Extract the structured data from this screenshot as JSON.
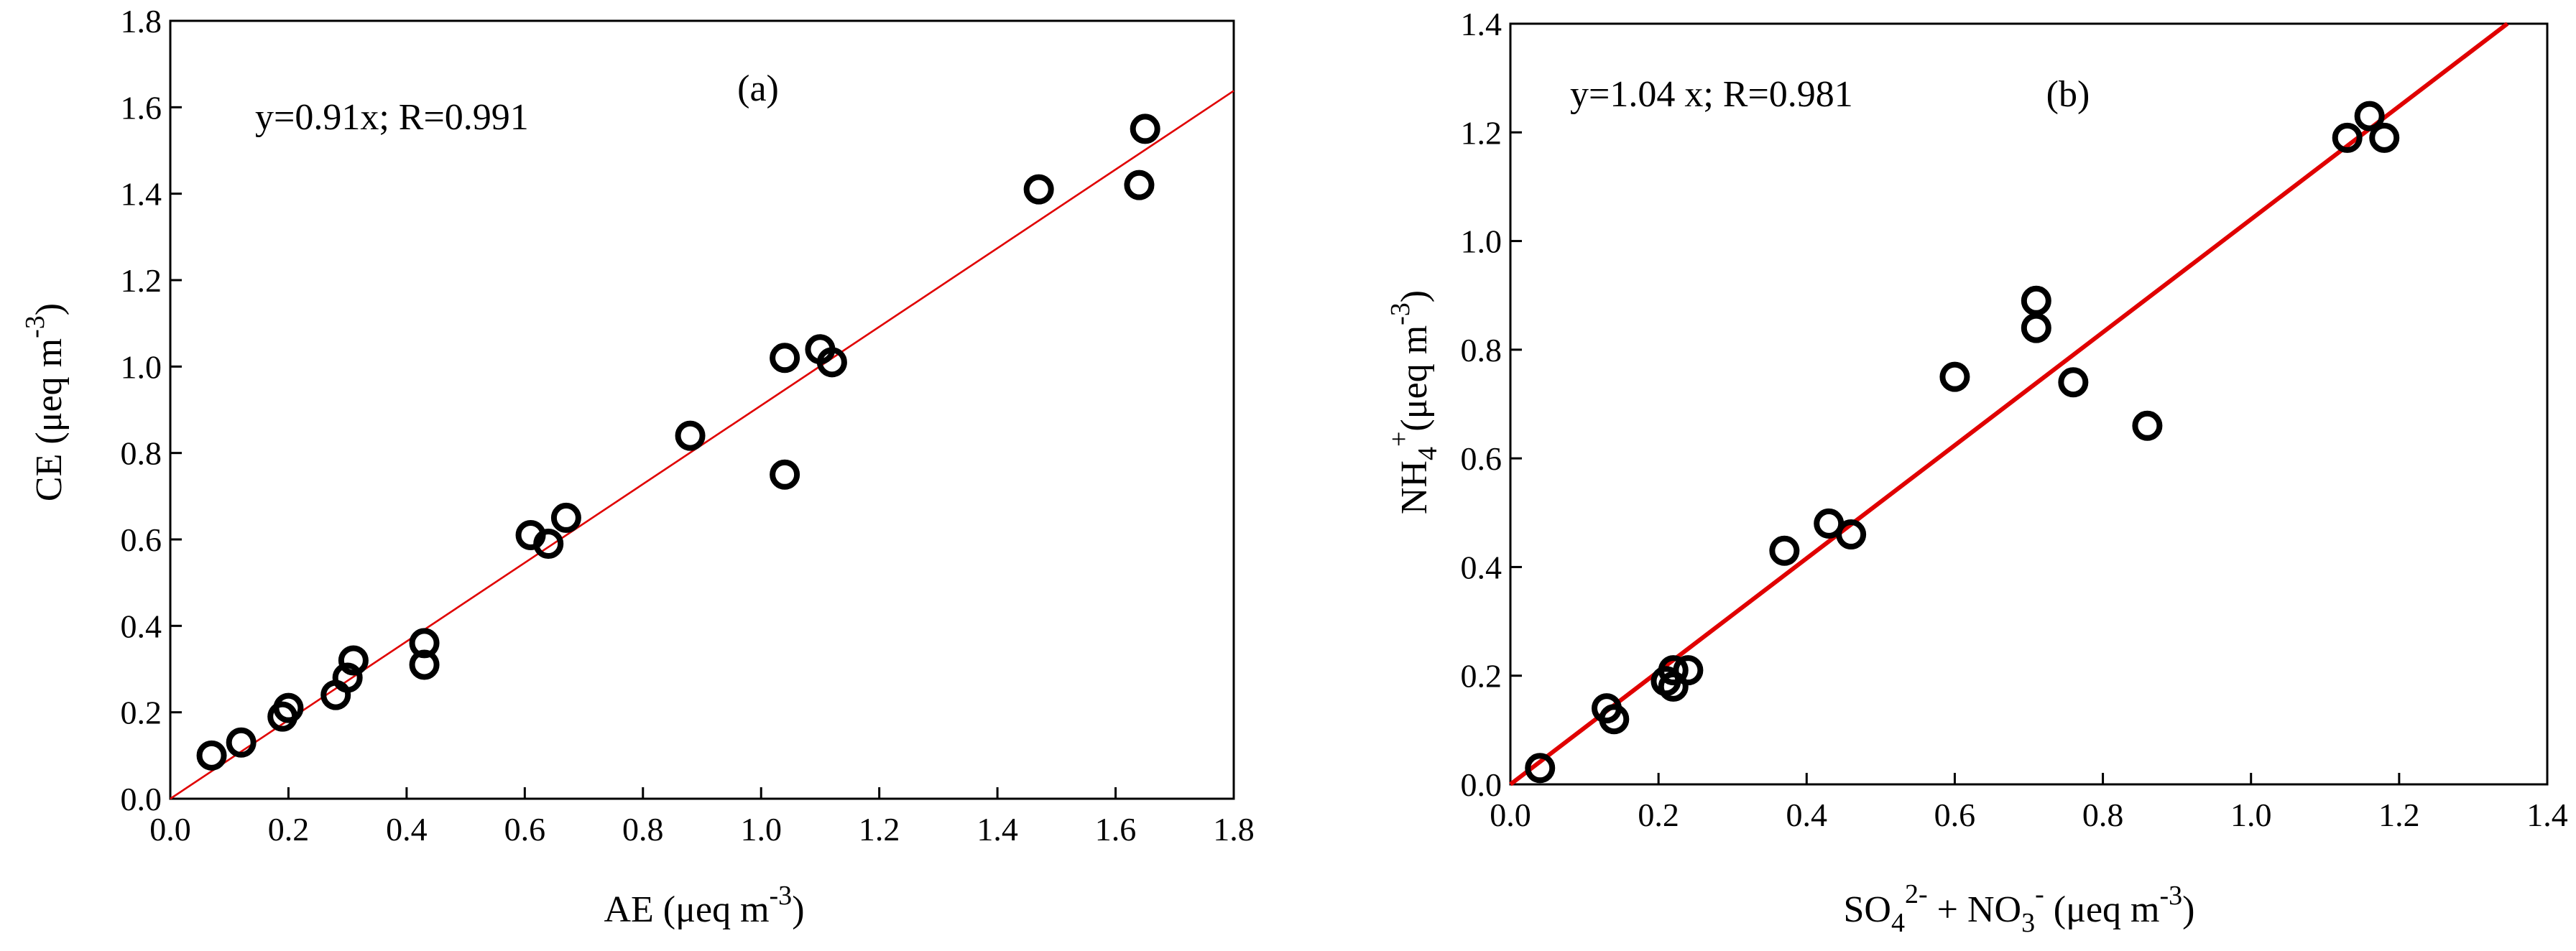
{
  "chart_data": [
    {
      "type": "scatter",
      "panel_label": "(a)",
      "equation": "y=0.91x;  R=0.991",
      "xlabel": {
        "prefix": "AE (μeq m",
        "sup": "-3",
        "suffix": ")"
      },
      "ylabel": {
        "prefix": "CE (μeq m",
        "sup": "-3",
        "suffix": ")"
      },
      "xlim": [
        0,
        1.8
      ],
      "ylim": [
        0,
        1.8
      ],
      "xticks": [
        "0.0",
        "0.2",
        "0.4",
        "0.6",
        "0.8",
        "1.0",
        "1.2",
        "1.4",
        "1.6",
        "1.8"
      ],
      "yticks": [
        "0.0",
        "0.2",
        "0.4",
        "0.6",
        "0.8",
        "1.0",
        "1.2",
        "1.4",
        "1.6",
        "1.8"
      ],
      "fit": {
        "slope": 0.91,
        "color": "#e00000"
      },
      "marker_color": "#000000",
      "points": [
        [
          0.07,
          0.1
        ],
        [
          0.12,
          0.13
        ],
        [
          0.19,
          0.19
        ],
        [
          0.2,
          0.21
        ],
        [
          0.28,
          0.24
        ],
        [
          0.3,
          0.28
        ],
        [
          0.31,
          0.32
        ],
        [
          0.43,
          0.36
        ],
        [
          0.43,
          0.31
        ],
        [
          0.61,
          0.61
        ],
        [
          0.64,
          0.59
        ],
        [
          0.67,
          0.65
        ],
        [
          0.88,
          0.84
        ],
        [
          1.04,
          1.02
        ],
        [
          1.04,
          0.75
        ],
        [
          1.1,
          1.04
        ],
        [
          1.12,
          1.01
        ],
        [
          1.47,
          1.41
        ],
        [
          1.64,
          1.42
        ],
        [
          1.65,
          1.55
        ]
      ]
    },
    {
      "type": "scatter",
      "panel_label": "(b)",
      "equation": "y=1.04 x;  R=0.981",
      "xlabel": {
        "prefix": "SO",
        "sub1": "4",
        "sup1": "2-",
        "mid": " + NO",
        "sub2": "3",
        "sup2": "-",
        "suffix": " (μeq m",
        "sup3": "-3",
        "end": ")"
      },
      "ylabel": {
        "prefix": "NH",
        "sub": "4",
        "sup": "+",
        "mid": "(μeq m",
        "sup2": "-3",
        "suffix": ")"
      },
      "xlim": [
        0,
        1.4
      ],
      "ylim": [
        0,
        1.4
      ],
      "xticks": [
        "0.0",
        "0.2",
        "0.4",
        "0.6",
        "0.8",
        "1.0",
        "1.2",
        "1.4"
      ],
      "yticks": [
        "0.0",
        "0.2",
        "0.4",
        "0.6",
        "0.8",
        "1.0",
        "1.2",
        "1.4"
      ],
      "fit": {
        "slope": 1.04,
        "color": "#e00000"
      },
      "marker_color": "#000000",
      "points": [
        [
          0.04,
          0.03
        ],
        [
          0.13,
          0.14
        ],
        [
          0.14,
          0.12
        ],
        [
          0.21,
          0.19
        ],
        [
          0.22,
          0.18
        ],
        [
          0.22,
          0.21
        ],
        [
          0.24,
          0.21
        ],
        [
          0.37,
          0.43
        ],
        [
          0.43,
          0.48
        ],
        [
          0.46,
          0.46
        ],
        [
          0.6,
          0.75
        ],
        [
          0.71,
          0.84
        ],
        [
          0.71,
          0.89
        ],
        [
          0.76,
          0.74
        ],
        [
          0.86,
          0.66
        ],
        [
          1.13,
          1.19
        ],
        [
          1.16,
          1.23
        ],
        [
          1.18,
          1.19
        ]
      ]
    }
  ]
}
